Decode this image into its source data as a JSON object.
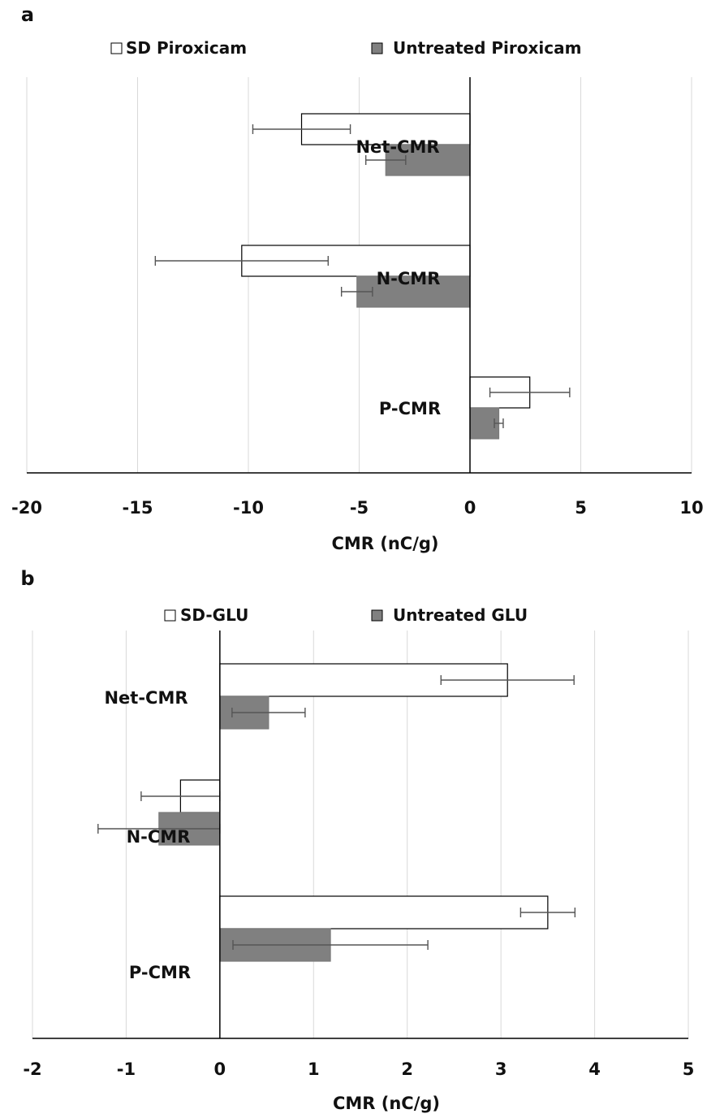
{
  "chart_data": [
    {
      "panel_label": "a",
      "type": "bar",
      "orientation": "horizontal",
      "categories": [
        "Net-CMR",
        "N-CMR",
        "P-CMR"
      ],
      "series": [
        {
          "name": "SD Piroxicam",
          "values": [
            -7.6,
            -10.3,
            2.7
          ],
          "errors": [
            2.2,
            3.9,
            1.8
          ]
        },
        {
          "name": "Untreated Piroxicam",
          "values": [
            -3.8,
            -5.1,
            1.3
          ],
          "errors": [
            0.9,
            0.7,
            0.2
          ]
        }
      ],
      "xlabel": "CMR (nC/g)",
      "xlim": [
        -20,
        10
      ],
      "xticks": [
        -20,
        -15,
        -10,
        -5,
        0,
        5,
        10
      ],
      "grid": "vertical",
      "legend_position": "top",
      "colors": {
        "SD Piroxicam": "#ffffff",
        "Untreated Piroxicam": "#808080"
      }
    },
    {
      "panel_label": "b",
      "type": "bar",
      "orientation": "horizontal",
      "categories": [
        "Net-CMR",
        "N-CMR",
        "P-CMR"
      ],
      "series": [
        {
          "name": "SD-GLU",
          "values": [
            3.07,
            -0.42,
            3.5
          ],
          "errors": [
            0.71,
            0.42,
            0.29
          ]
        },
        {
          "name": "Untreated GLU",
          "values": [
            0.52,
            -0.65,
            1.18
          ],
          "errors": [
            0.39,
            0.65,
            1.04
          ]
        }
      ],
      "xlabel": "CMR (nC/g)",
      "xlim": [
        -2,
        5
      ],
      "xticks": [
        -2,
        -1,
        0,
        1,
        2,
        3,
        4,
        5
      ],
      "grid": "vertical",
      "legend_position": "top",
      "colors": {
        "SD-GLU": "#ffffff",
        "Untreated GLU": "#808080"
      }
    }
  ]
}
